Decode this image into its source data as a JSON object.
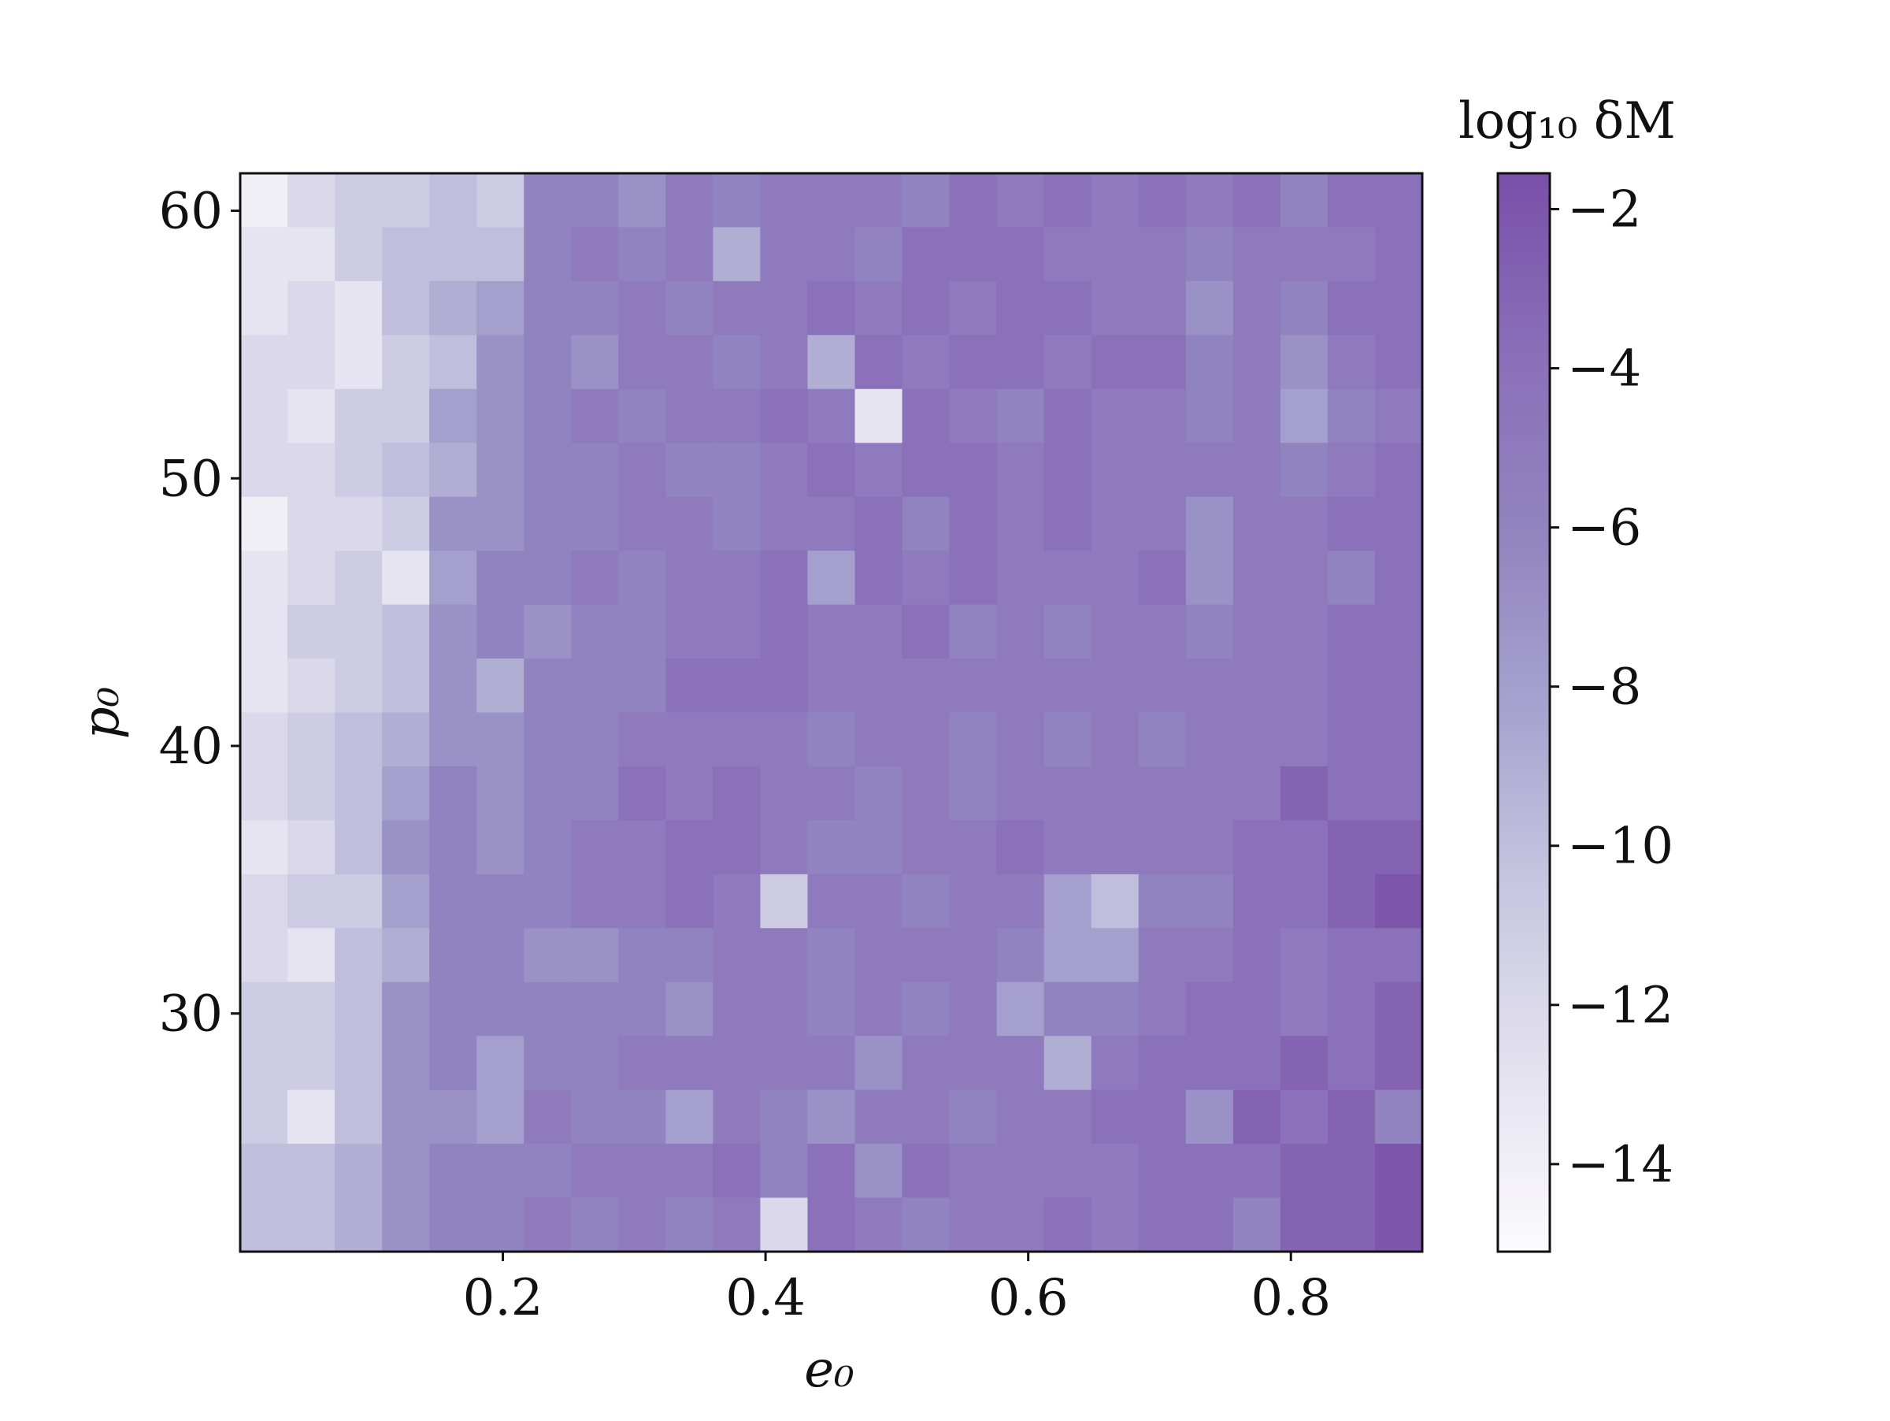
{
  "chart_data": {
    "type": "heatmap",
    "xlabel": "e₀",
    "ylabel": "p₀",
    "colorbar_label": "log₁₀ δM",
    "xlim": [
      0,
      0.9
    ],
    "ylim": [
      21.1,
      61.4
    ],
    "xticks": [
      0.2,
      0.4,
      0.6,
      0.8
    ],
    "yticks": [
      30,
      40,
      50,
      60
    ],
    "zlim": [
      -15.1,
      -1.55
    ],
    "zticks": [
      {
        "value": -2,
        "label": "−2"
      },
      {
        "value": -4,
        "label": "−4"
      },
      {
        "value": -6,
        "label": "−6"
      },
      {
        "value": -8,
        "label": "−8"
      },
      {
        "value": -10,
        "label": "−10"
      },
      {
        "value": -12,
        "label": "−12"
      },
      {
        "value": -14,
        "label": "−14"
      }
    ],
    "colors": [
      "#fcfbfd",
      "#e4e2ef",
      "#c9c7e1",
      "#a7a3cf",
      "#9184bf",
      "#8a6fb8",
      "#7a4fa8"
    ],
    "values": [
      [
        -14,
        -12,
        -11,
        -11,
        -10,
        -11,
        -6,
        -6,
        -7,
        -5,
        -6,
        -5,
        -5,
        -5,
        -6,
        -4,
        -5,
        -4,
        -5,
        -4,
        -5,
        -4,
        -6,
        -4,
        -4
      ],
      [
        -13,
        -13,
        -11,
        -10,
        -10,
        -10,
        -6,
        -5,
        -6,
        -5,
        -9,
        -5,
        -5,
        -6,
        -4,
        -4,
        -4,
        -5,
        -5,
        -5,
        -6,
        -5,
        -5,
        -5,
        -4
      ],
      [
        -13,
        -12,
        -13,
        -10,
        -9,
        -8,
        -6,
        -6,
        -5,
        -6,
        -5,
        -5,
        -4,
        -5,
        -4,
        -5,
        -4,
        -4,
        -5,
        -5,
        -7,
        -5,
        -6,
        -4,
        -4
      ],
      [
        -12,
        -12,
        -13,
        -11,
        -10,
        -7,
        -6,
        -7,
        -5,
        -5,
        -6,
        -5,
        -9,
        -4,
        -5,
        -4,
        -4,
        -5,
        -4,
        -4,
        -6,
        -5,
        -7,
        -5,
        -4
      ],
      [
        -12,
        -13,
        -11,
        -11,
        -8,
        -7,
        -6,
        -5,
        -6,
        -5,
        -5,
        -4,
        -5,
        -13,
        -4,
        -5,
        -6,
        -4,
        -5,
        -5,
        -6,
        -5,
        -8,
        -6,
        -5
      ],
      [
        -12,
        -12,
        -11,
        -10,
        -9,
        -7,
        -6,
        -6,
        -5,
        -6,
        -6,
        -5,
        -4,
        -5,
        -4,
        -4,
        -5,
        -4,
        -5,
        -5,
        -5,
        -5,
        -6,
        -5,
        -4
      ],
      [
        -14,
        -12,
        -12,
        -11,
        -7,
        -7,
        -6,
        -6,
        -5,
        -5,
        -6,
        -5,
        -5,
        -4,
        -6,
        -4,
        -5,
        -4,
        -5,
        -5,
        -7,
        -5,
        -5,
        -4,
        -4
      ],
      [
        -13,
        -12,
        -11,
        -13,
        -8,
        -6,
        -6,
        -5,
        -6,
        -5,
        -5,
        -4,
        -8,
        -4,
        -5,
        -4,
        -5,
        -5,
        -5,
        -4,
        -7,
        -5,
        -5,
        -6,
        -4
      ],
      [
        -13,
        -11,
        -11,
        -10,
        -7,
        -6,
        -7,
        -6,
        -6,
        -5,
        -5,
        -4,
        -5,
        -5,
        -4,
        -6,
        -5,
        -6,
        -5,
        -5,
        -6,
        -5,
        -5,
        -4,
        -4
      ],
      [
        -13,
        -12,
        -11,
        -10,
        -7,
        -9,
        -6,
        -6,
        -6,
        -4,
        -4,
        -4,
        -5,
        -5,
        -5,
        -5,
        -5,
        -5,
        -5,
        -5,
        -5,
        -5,
        -5,
        -4,
        -4
      ],
      [
        -12,
        -11,
        -10,
        -9,
        -7,
        -7,
        -6,
        -6,
        -5,
        -5,
        -5,
        -5,
        -6,
        -5,
        -5,
        -6,
        -5,
        -6,
        -5,
        -6,
        -5,
        -5,
        -5,
        -4,
        -4
      ],
      [
        -12,
        -11,
        -10,
        -8,
        -6,
        -7,
        -6,
        -6,
        -4,
        -5,
        -4,
        -5,
        -5,
        -6,
        -5,
        -6,
        -5,
        -5,
        -5,
        -5,
        -5,
        -5,
        -3,
        -4,
        -4
      ],
      [
        -13,
        -12,
        -10,
        -7,
        -6,
        -7,
        -6,
        -5,
        -5,
        -4,
        -4,
        -5,
        -6,
        -6,
        -5,
        -5,
        -4,
        -5,
        -5,
        -5,
        -5,
        -4,
        -4,
        -3,
        -3
      ],
      [
        -12,
        -11,
        -11,
        -8,
        -6,
        -6,
        -6,
        -5,
        -5,
        -4,
        -5,
        -11,
        -5,
        -5,
        -6,
        -5,
        -5,
        -8,
        -10,
        -6,
        -6,
        -4,
        -4,
        -3,
        -2
      ],
      [
        -12,
        -13,
        -10,
        -9,
        -6,
        -6,
        -7,
        -7,
        -6,
        -6,
        -5,
        -5,
        -6,
        -5,
        -5,
        -5,
        -6,
        -8,
        -8,
        -5,
        -5,
        -4,
        -5,
        -4,
        -4
      ],
      [
        -11,
        -11,
        -10,
        -7,
        -6,
        -6,
        -6,
        -6,
        -6,
        -7,
        -5,
        -5,
        -6,
        -5,
        -6,
        -5,
        -8,
        -6,
        -6,
        -5,
        -4,
        -4,
        -5,
        -4,
        -3
      ],
      [
        -11,
        -11,
        -10,
        -7,
        -6,
        -8,
        -6,
        -6,
        -5,
        -5,
        -5,
        -5,
        -5,
        -7,
        -5,
        -5,
        -5,
        -9,
        -5,
        -4,
        -4,
        -4,
        -3,
        -4,
        -3
      ],
      [
        -11,
        -13,
        -10,
        -7,
        -7,
        -8,
        -5,
        -6,
        -6,
        -8,
        -5,
        -6,
        -7,
        -5,
        -5,
        -6,
        -5,
        -5,
        -4,
        -4,
        -7,
        -3,
        -4,
        -3,
        -6
      ],
      [
        -10,
        -10,
        -9,
        -7,
        -6,
        -6,
        -6,
        -5,
        -5,
        -5,
        -4,
        -6,
        -4,
        -7,
        -4,
        -5,
        -5,
        -5,
        -5,
        -4,
        -4,
        -4,
        -3,
        -3,
        -2
      ],
      [
        -10,
        -10,
        -9,
        -7,
        -6,
        -6,
        -5,
        -6,
        -5,
        -6,
        -5,
        -12,
        -4,
        -5,
        -6,
        -5,
        -5,
        -4,
        -5,
        -4,
        -4,
        -6,
        -3,
        -3,
        -2
      ]
    ]
  }
}
